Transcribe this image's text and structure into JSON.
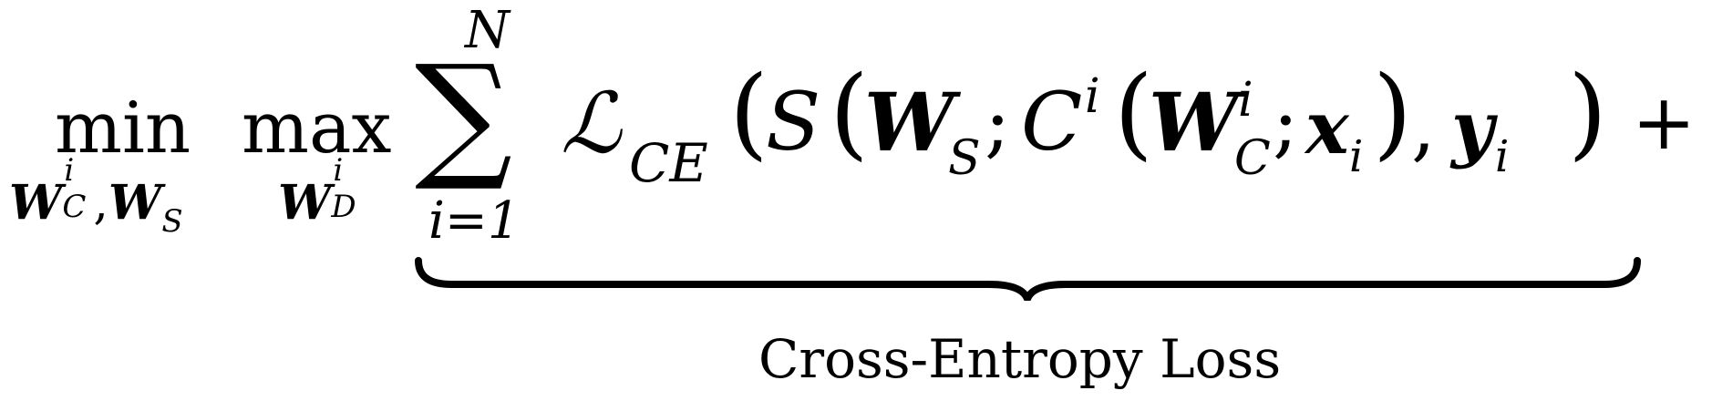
{
  "formula": {
    "min_op": "min",
    "min_sub_W": "W",
    "min_sub_W_sub": "C",
    "min_sub_W_sup": "i",
    "min_sub_comma": ",",
    "min_sub_W2": "W",
    "min_sub_W2_sub": "S",
    "max_op": "max",
    "max_sub_W": "W",
    "max_sub_W_sub": "D",
    "max_sub_W_sup": "i",
    "sum_symbol": "∑",
    "sum_upper": "N",
    "sum_lower": "i=1",
    "loss_symbol": "ℒ",
    "loss_subscript": "CE",
    "S_symbol": "S",
    "W_symbol": "W",
    "W_S_sub": "S",
    "semicolon": ";",
    "C_symbol": "C",
    "C_sup": "i",
    "W_C_sub": "C",
    "W_C_sup": "i",
    "x_symbol": "x",
    "x_sub": "i",
    "comma": ",",
    "y_symbol": "y",
    "y_sub": "i",
    "plus": "+",
    "brace_label": "Cross-Entropy Loss"
  }
}
